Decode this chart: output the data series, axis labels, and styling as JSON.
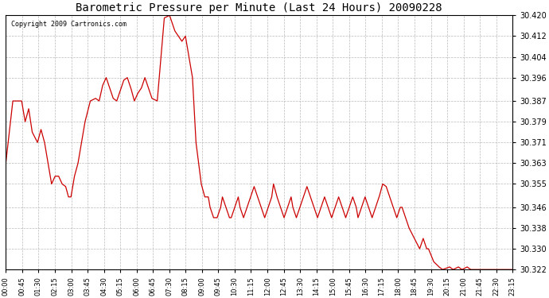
{
  "title": "Barometric Pressure per Minute (Last 24 Hours) 20090228",
  "copyright": "Copyright 2009 Cartronics.com",
  "line_color": "#cc0000",
  "background_color": "#ffffff",
  "plot_bg_color": "#ffffff",
  "grid_color": "#aaaaaa",
  "ylim": [
    30.322,
    30.42
  ],
  "yticks": [
    30.322,
    30.33,
    30.338,
    30.346,
    30.355,
    30.363,
    30.371,
    30.379,
    30.387,
    30.396,
    30.404,
    30.412,
    30.42
  ],
  "xtick_labels": [
    "00:00",
    "00:45",
    "01:30",
    "02:15",
    "03:00",
    "03:45",
    "04:30",
    "05:15",
    "06:00",
    "06:45",
    "07:30",
    "08:15",
    "09:00",
    "09:45",
    "10:30",
    "11:15",
    "12:00",
    "12:45",
    "13:30",
    "14:15",
    "15:00",
    "15:45",
    "16:30",
    "17:15",
    "18:00",
    "18:45",
    "19:30",
    "20:15",
    "21:00",
    "21:45",
    "22:30",
    "23:15"
  ],
  "n_points": 1440,
  "key_points": [
    [
      0,
      30.363
    ],
    [
      20,
      30.387
    ],
    [
      45,
      30.387
    ],
    [
      55,
      30.379
    ],
    [
      65,
      30.384
    ],
    [
      75,
      30.375
    ],
    [
      90,
      30.371
    ],
    [
      100,
      30.376
    ],
    [
      110,
      30.371
    ],
    [
      120,
      30.363
    ],
    [
      130,
      30.355
    ],
    [
      140,
      30.358
    ],
    [
      150,
      30.358
    ],
    [
      160,
      30.355
    ],
    [
      170,
      30.354
    ],
    [
      178,
      30.35
    ],
    [
      185,
      30.35
    ],
    [
      195,
      30.358
    ],
    [
      205,
      30.363
    ],
    [
      215,
      30.371
    ],
    [
      225,
      30.379
    ],
    [
      240,
      30.387
    ],
    [
      255,
      30.388
    ],
    [
      265,
      30.387
    ],
    [
      275,
      30.393
    ],
    [
      285,
      30.396
    ],
    [
      295,
      30.392
    ],
    [
      305,
      30.388
    ],
    [
      315,
      30.387
    ],
    [
      325,
      30.391
    ],
    [
      335,
      30.395
    ],
    [
      345,
      30.396
    ],
    [
      355,
      30.392
    ],
    [
      365,
      30.387
    ],
    [
      375,
      30.39
    ],
    [
      385,
      30.392
    ],
    [
      395,
      30.396
    ],
    [
      405,
      30.392
    ],
    [
      415,
      30.388
    ],
    [
      430,
      30.387
    ],
    [
      450,
      30.419
    ],
    [
      465,
      30.42
    ],
    [
      480,
      30.414
    ],
    [
      490,
      30.412
    ],
    [
      500,
      30.41
    ],
    [
      510,
      30.412
    ],
    [
      520,
      30.404
    ],
    [
      530,
      30.396
    ],
    [
      540,
      30.371
    ],
    [
      555,
      30.355
    ],
    [
      565,
      30.35
    ],
    [
      575,
      30.35
    ],
    [
      580,
      30.346
    ],
    [
      590,
      30.342
    ],
    [
      600,
      30.342
    ],
    [
      610,
      30.346
    ],
    [
      615,
      30.35
    ],
    [
      625,
      30.346
    ],
    [
      635,
      30.342
    ],
    [
      640,
      30.342
    ],
    [
      650,
      30.346
    ],
    [
      660,
      30.35
    ],
    [
      665,
      30.346
    ],
    [
      675,
      30.342
    ],
    [
      685,
      30.346
    ],
    [
      695,
      30.35
    ],
    [
      705,
      30.354
    ],
    [
      715,
      30.35
    ],
    [
      725,
      30.346
    ],
    [
      735,
      30.342
    ],
    [
      745,
      30.346
    ],
    [
      755,
      30.35
    ],
    [
      760,
      30.355
    ],
    [
      770,
      30.35
    ],
    [
      780,
      30.346
    ],
    [
      790,
      30.342
    ],
    [
      800,
      30.346
    ],
    [
      810,
      30.35
    ],
    [
      815,
      30.346
    ],
    [
      825,
      30.342
    ],
    [
      835,
      30.346
    ],
    [
      845,
      30.35
    ],
    [
      855,
      30.354
    ],
    [
      865,
      30.35
    ],
    [
      875,
      30.346
    ],
    [
      885,
      30.342
    ],
    [
      895,
      30.346
    ],
    [
      905,
      30.35
    ],
    [
      915,
      30.346
    ],
    [
      925,
      30.342
    ],
    [
      935,
      30.346
    ],
    [
      945,
      30.35
    ],
    [
      955,
      30.346
    ],
    [
      965,
      30.342
    ],
    [
      975,
      30.346
    ],
    [
      985,
      30.35
    ],
    [
      995,
      30.346
    ],
    [
      1000,
      30.342
    ],
    [
      1010,
      30.346
    ],
    [
      1020,
      30.35
    ],
    [
      1030,
      30.346
    ],
    [
      1040,
      30.342
    ],
    [
      1050,
      30.346
    ],
    [
      1060,
      30.35
    ],
    [
      1070,
      30.355
    ],
    [
      1080,
      30.354
    ],
    [
      1090,
      30.35
    ],
    [
      1100,
      30.346
    ],
    [
      1110,
      30.342
    ],
    [
      1120,
      30.346
    ],
    [
      1125,
      30.346
    ],
    [
      1135,
      30.342
    ],
    [
      1145,
      30.338
    ],
    [
      1160,
      30.334
    ],
    [
      1175,
      30.33
    ],
    [
      1185,
      30.334
    ],
    [
      1195,
      30.33
    ],
    [
      1200,
      30.33
    ],
    [
      1215,
      30.325
    ],
    [
      1230,
      30.323
    ],
    [
      1240,
      30.322
    ],
    [
      1260,
      30.323
    ],
    [
      1270,
      30.322
    ],
    [
      1285,
      30.323
    ],
    [
      1295,
      30.322
    ],
    [
      1310,
      30.323
    ],
    [
      1320,
      30.322
    ],
    [
      1350,
      30.322
    ],
    [
      1380,
      30.322
    ],
    [
      1410,
      30.322
    ],
    [
      1439,
      30.322
    ]
  ]
}
